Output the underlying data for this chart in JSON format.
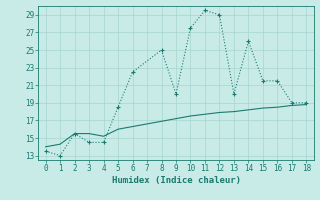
{
  "line1_x": [
    0,
    1,
    2,
    3,
    4,
    5,
    6,
    8,
    9,
    10,
    11,
    12,
    13,
    14,
    15,
    16,
    17,
    18
  ],
  "line1_y": [
    13.5,
    13.0,
    15.5,
    14.5,
    14.5,
    18.5,
    22.5,
    25.0,
    20.0,
    27.5,
    29.5,
    29.0,
    20.0,
    26.0,
    21.5,
    21.5,
    19.0,
    19.0
  ],
  "line2_x": [
    0,
    1,
    2,
    3,
    4,
    5,
    6,
    7,
    8,
    9,
    10,
    11,
    12,
    13,
    14,
    15,
    16,
    17,
    18
  ],
  "line2_y": [
    14.0,
    14.3,
    15.5,
    15.5,
    15.2,
    16.0,
    16.3,
    16.6,
    16.9,
    17.2,
    17.5,
    17.7,
    17.9,
    18.0,
    18.2,
    18.4,
    18.5,
    18.7,
    18.8
  ],
  "color": "#1a7a6e",
  "bg_color": "#c8ebe8",
  "grid_color": "#a8d5d0",
  "xlabel": "Humidex (Indice chaleur)",
  "xlim": [
    -0.5,
    18.5
  ],
  "ylim": [
    12.5,
    30.0
  ],
  "yticks": [
    13,
    15,
    17,
    19,
    21,
    23,
    25,
    27,
    29
  ],
  "xticks": [
    0,
    1,
    2,
    3,
    4,
    5,
    6,
    7,
    8,
    9,
    10,
    11,
    12,
    13,
    14,
    15,
    16,
    17,
    18
  ]
}
